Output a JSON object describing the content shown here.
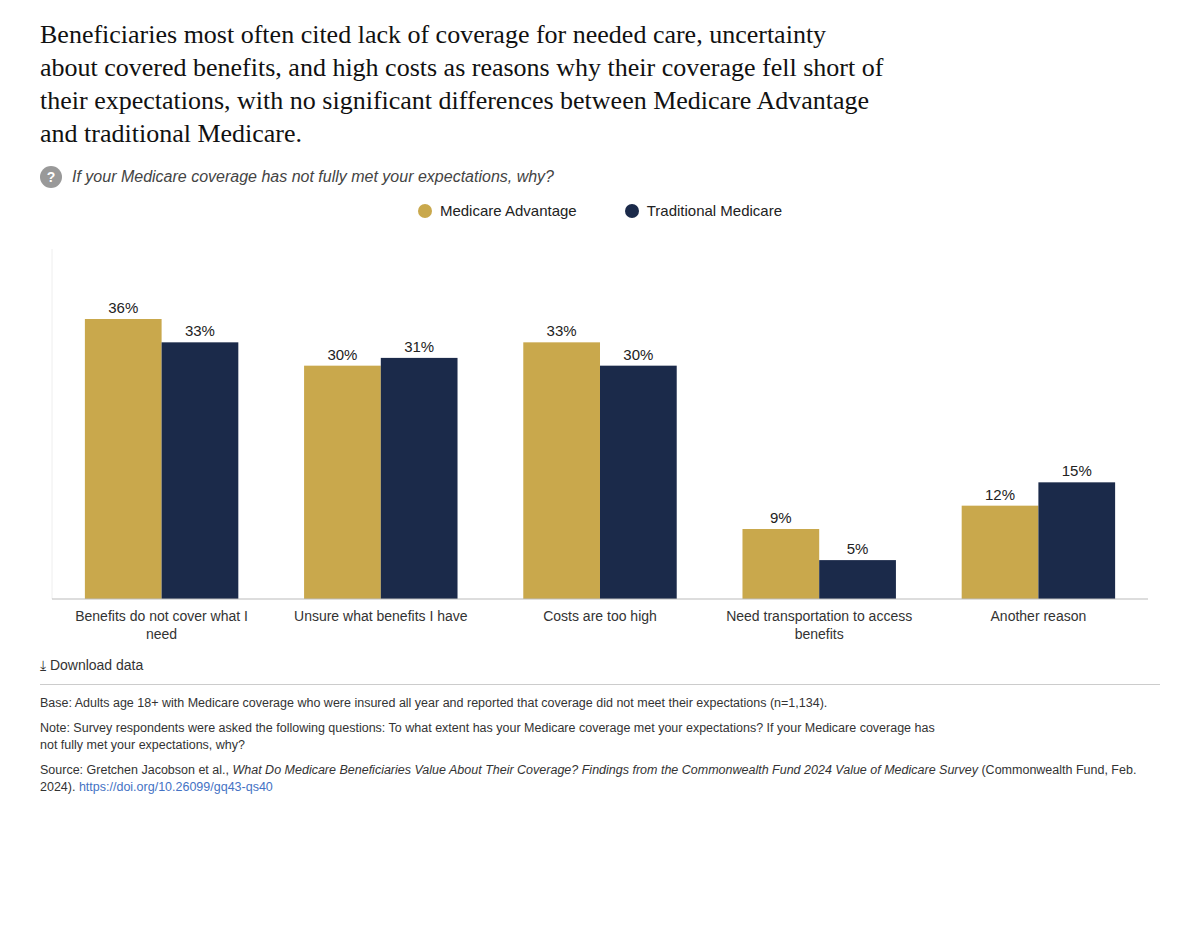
{
  "chart_data": {
    "type": "bar",
    "title": "Beneficiaries most often cited lack of coverage for needed care, uncertainty\nabout covered benefits, and high costs as reasons why their coverage fell short of\ntheir expectations, with no significant differences between Medicare Advantage\nand traditional Medicare.",
    "subtitle": "If your Medicare coverage has not fully met your expectations, why?",
    "categories": [
      "Benefits do not cover what I\nneed",
      "Unsure what benefits I have",
      "Costs are too high",
      "Need transportation to access\nbenefits",
      "Another reason"
    ],
    "series": [
      {
        "name": "Medicare Advantage",
        "color": "#C9A84C",
        "values": [
          36,
          30,
          33,
          9,
          12
        ],
        "value_labels": [
          "36%",
          "30%",
          "33%",
          "9%",
          "12%"
        ]
      },
      {
        "name": "Traditional Medicare",
        "color": "#1B2A4A",
        "values": [
          33,
          31,
          30,
          5,
          15
        ],
        "value_labels": [
          "33%",
          "31%",
          "30%",
          "5%",
          "15%"
        ]
      }
    ],
    "ylim": [
      0,
      45
    ],
    "grid": false,
    "legend": "top",
    "data_labels": true,
    "tick_labels": "x",
    "annotations": [
      "?",
      "⤓  Download data",
      "Base: Adults age 18+ with Medicare coverage who were insured all year and reported that coverage did not meet their expectations (n=1,134).",
      "Note: Survey respondents were asked the following questions: To what extent has your Medicare coverage met your expectations? If your Medicare coverage has\nnot fully met your expectations, why?",
      "Source: Gretchen Jacobson et al., ",
      "What Do Medicare Beneficiaries Value About Their Coverage? Findings from the Commonwealth Fund 2024 Value of Medicare Survey",
      " (Commonwealth Fund, Feb. 2024). ",
      "https://doi.org/10.26099/gq43-qs40"
    ]
  }
}
